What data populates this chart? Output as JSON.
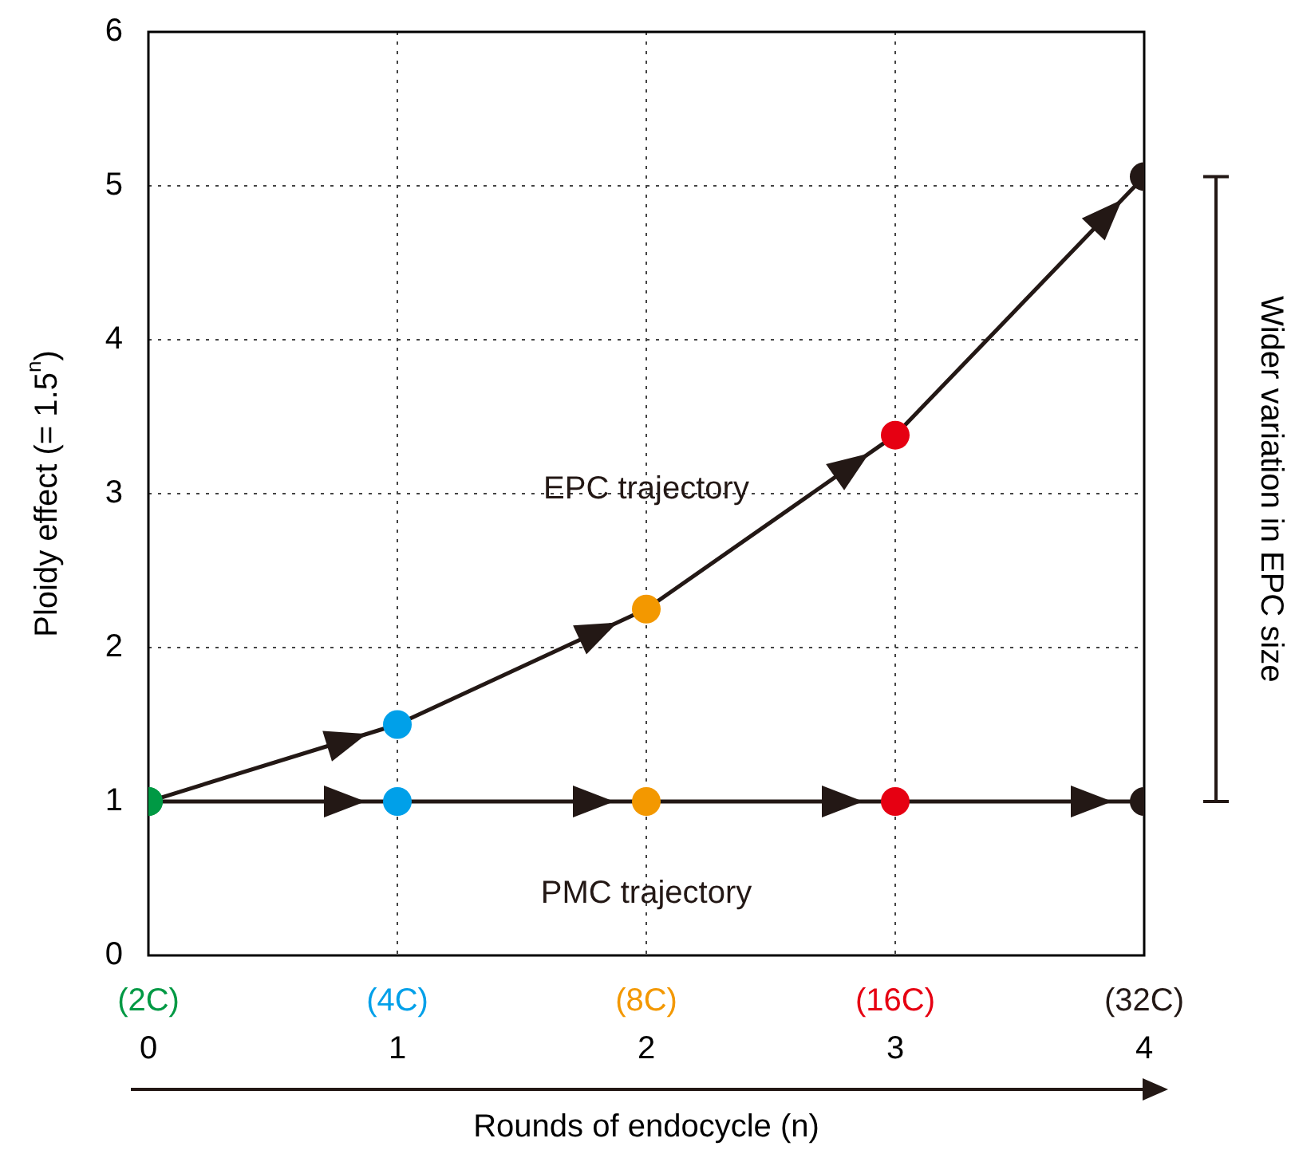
{
  "chart_data": {
    "type": "line",
    "xlabel": "Rounds of endocycle (n)",
    "ylabel": "Ploidy effect (= 1.5$^{n}$)",
    "x": [
      0,
      1,
      2,
      3,
      4
    ],
    "xlim": [
      0,
      4
    ],
    "ylim": [
      0,
      6
    ],
    "xticks": [
      0,
      1,
      2,
      3,
      4
    ],
    "yticks": [
      0,
      1,
      2,
      3,
      4,
      5,
      6
    ],
    "series": [
      {
        "name": "EPC trajectory",
        "color": "#231815",
        "colors": [
          "#009944",
          "#00a0e9",
          "#f39800",
          "#e60012",
          "#231815"
        ],
        "values": [
          1,
          1.5,
          2.25,
          3.38,
          5.06
        ]
      },
      {
        "name": "PMC trajectory",
        "color": "#231815",
        "colors": [
          "#009944",
          "#00a0e9",
          "#f39800",
          "#e60012",
          "#231815"
        ],
        "values": [
          1,
          1,
          1,
          1,
          1
        ]
      }
    ],
    "annotations": [
      "(2C)",
      "(4C)",
      "(8C)",
      "(16C)",
      "(32C)",
      "Wider variation in EPC size"
    ],
    "grid": true,
    "legend": false,
    "marker": "circle",
    "line_style": "solid"
  }
}
